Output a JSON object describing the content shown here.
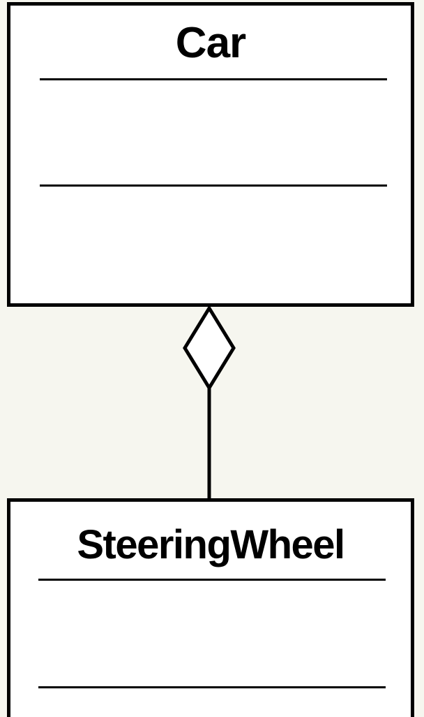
{
  "diagram": {
    "type": "uml-class-diagram",
    "classes": [
      {
        "name": "Car",
        "attributes": [],
        "operations": []
      },
      {
        "name": "SteeringWheel",
        "attributes": [],
        "operations": []
      }
    ],
    "relationships": [
      {
        "kind": "aggregation",
        "whole": "Car",
        "part": "SteeringWheel",
        "symbol": "hollow-diamond"
      }
    ]
  },
  "colors": {
    "background": "#f6f6ef",
    "box_fill": "#ffffff",
    "stroke": "#000000"
  }
}
